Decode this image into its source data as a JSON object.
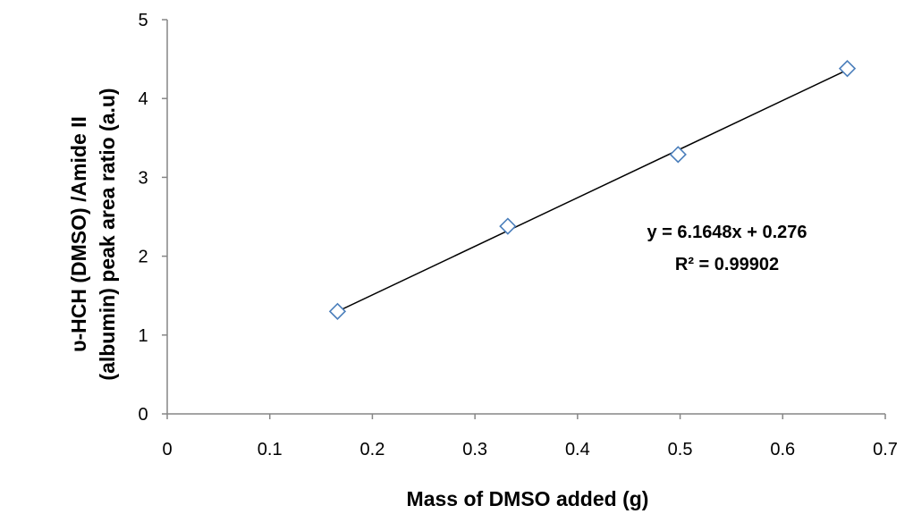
{
  "chart_data": {
    "type": "scatter",
    "xlabel": "Mass of DMSO added (g)",
    "ylabel": [
      "υ-HCH (DMSO) /Amide II",
      "(albumin) peak area ratio (a.u)"
    ],
    "xlim": [
      0,
      0.7
    ],
    "ylim": [
      0,
      5
    ],
    "x_ticks": [
      "0",
      "0.1",
      "0.2",
      "0.3",
      "0.4",
      "0.5",
      "0.6",
      "0.7"
    ],
    "y_ticks": [
      "0",
      "1",
      "2",
      "3",
      "4",
      "5"
    ],
    "grid": false,
    "legend": "none",
    "marker": "diamond-open",
    "marker_color": "#4a7ebb",
    "trendline_color": "#000000",
    "series": [
      {
        "x": [
          0.166,
          0.332,
          0.498,
          0.663
        ],
        "y": [
          1.3,
          2.38,
          3.29,
          4.38
        ]
      }
    ],
    "trendline": {
      "type": "linear",
      "slope": 6.1648,
      "intercept": 0.276,
      "x_range": [
        0.166,
        0.663
      ]
    },
    "annotations": {
      "equation": "y = 6.1648x + 0.276",
      "r_squared": "R² = 0.99902"
    }
  }
}
